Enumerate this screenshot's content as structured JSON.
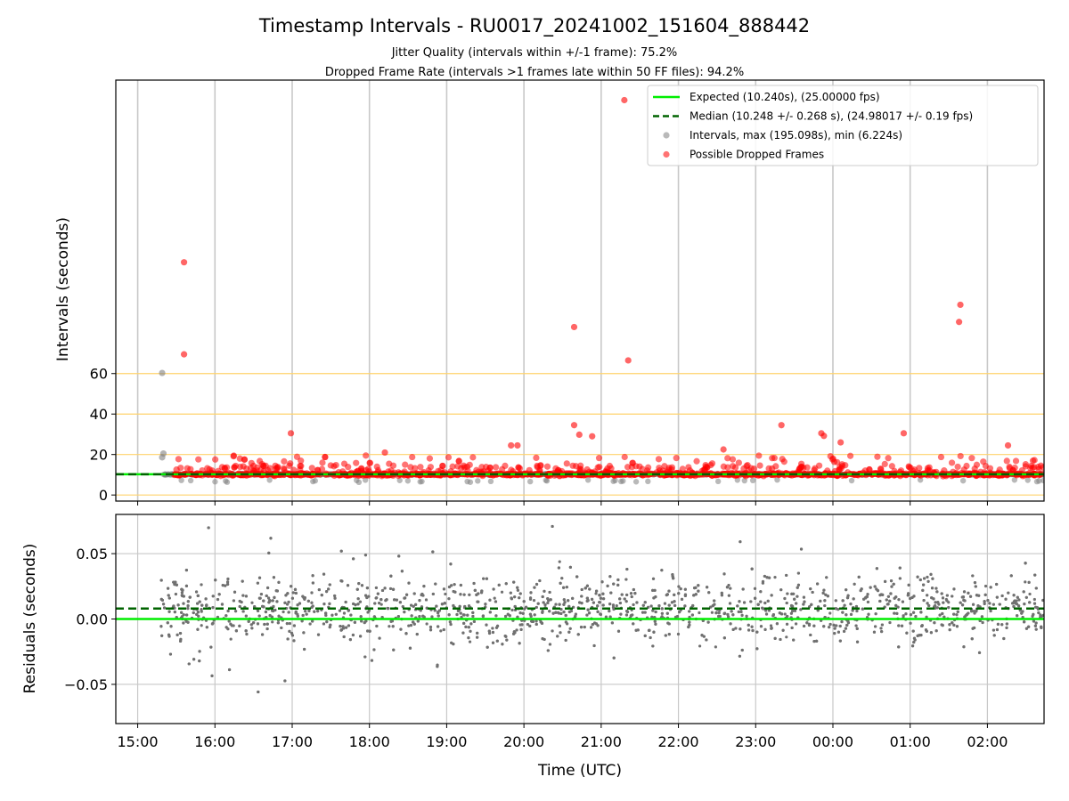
{
  "chart_data": [
    {
      "type": "scatter",
      "panel": "intervals",
      "title": "Timestamp Intervals - RU0017_20241002_151604_888442",
      "subtitle_lines": [
        "Jitter Quality (intervals within +/-1 frame): 75.2%",
        "Dropped Frame Rate (intervals >1 frames late within 50 FF files): 94.2%"
      ],
      "ylabel": "Intervals (seconds)",
      "ylim": [
        -3,
        205
      ],
      "yticks": [
        0,
        20,
        40,
        60
      ],
      "ytick_labels": [
        "0",
        "20",
        "40",
        "60"
      ],
      "reference_lines": [
        0,
        20,
        40,
        60
      ],
      "reference_line_color": "#ffd36b",
      "grid": "vertical",
      "legend_placement": "top-right",
      "legend": [
        {
          "label": "Expected (10.240s), (25.00000 fps)",
          "style": "solid-line",
          "color": "#00ee00"
        },
        {
          "label": "Median (10.248 +/- 0.268 s), (24.98017 +/- 0.19 fps)",
          "style": "dashed-line",
          "color": "#006400"
        },
        {
          "label": "Intervals, max (195.098s), min (6.224s)",
          "style": "dot",
          "color": "#808080"
        },
        {
          "label": "Possible Dropped Frames",
          "style": "dot",
          "color": "#ff0000"
        }
      ],
      "expected": 10.24,
      "median": 10.248,
      "notable_points": [
        {
          "x": "15:19",
          "y": 60.3,
          "series": "Intervals"
        },
        {
          "x": "15:20",
          "y": 20.5,
          "series": "Intervals"
        },
        {
          "x": "15:19",
          "y": 18.6,
          "series": "Intervals"
        },
        {
          "x": "15:36",
          "y": 115,
          "series": "Possible Dropped Frames"
        },
        {
          "x": "15:36",
          "y": 69.5,
          "series": "Possible Dropped Frames"
        },
        {
          "x": "16:59",
          "y": 30.5,
          "series": "Possible Dropped Frames"
        },
        {
          "x": "20:39",
          "y": 83,
          "series": "Possible Dropped Frames"
        },
        {
          "x": "20:39",
          "y": 34.5,
          "series": "Possible Dropped Frames"
        },
        {
          "x": "20:43",
          "y": 29.8,
          "series": "Possible Dropped Frames"
        },
        {
          "x": "20:53",
          "y": 29,
          "series": "Possible Dropped Frames"
        },
        {
          "x": "21:18",
          "y": 195.1,
          "series": "Possible Dropped Frames"
        },
        {
          "x": "21:21",
          "y": 66.5,
          "series": "Possible Dropped Frames"
        },
        {
          "x": "23:20",
          "y": 34.5,
          "series": "Possible Dropped Frames"
        },
        {
          "x": "23:51",
          "y": 30.5,
          "series": "Possible Dropped Frames"
        },
        {
          "x": "23:53",
          "y": 29.2,
          "series": "Possible Dropped Frames"
        },
        {
          "x": "00:55",
          "y": 30.5,
          "series": "Possible Dropped Frames"
        },
        {
          "x": "01:39",
          "y": 94,
          "series": "Possible Dropped Frames"
        },
        {
          "x": "01:38",
          "y": 85.5,
          "series": "Possible Dropped Frames"
        },
        {
          "x": "02:16",
          "y": 24.5,
          "series": "Possible Dropped Frames"
        },
        {
          "x": "19:50",
          "y": 24.5,
          "series": "Possible Dropped Frames"
        },
        {
          "x": "19:55",
          "y": 24.5,
          "series": "Possible Dropped Frames"
        },
        {
          "x": "22:35",
          "y": 22.5,
          "series": "Possible Dropped Frames"
        },
        {
          "x": "18:12",
          "y": 21,
          "series": "Possible Dropped Frames"
        },
        {
          "x": "00:06",
          "y": 26,
          "series": "Possible Dropped Frames"
        }
      ]
    },
    {
      "type": "scatter",
      "panel": "residuals",
      "xlabel": "Time (UTC)",
      "ylabel": "Residuals (seconds)",
      "ylim": [
        -0.08,
        0.08
      ],
      "yticks": [
        -0.05,
        0.0,
        0.05
      ],
      "ytick_labels": [
        "−0.05",
        "0.00",
        "0.05"
      ],
      "xlim": [
        "14:43",
        "02:44"
      ],
      "xtick_labels": [
        "15:00",
        "16:00",
        "17:00",
        "18:00",
        "19:00",
        "20:00",
        "21:00",
        "22:00",
        "23:00",
        "00:00",
        "01:00",
        "02:00"
      ],
      "grid": "both",
      "expected_residual": 0.0,
      "median_residual": 0.008,
      "series": [
        {
          "name": "Intervals",
          "color": "#707070",
          "x_range": [
            "15:18",
            "02:44"
          ],
          "typical_range": [
            -0.05,
            0.06
          ],
          "center": 0.008
        }
      ]
    }
  ]
}
